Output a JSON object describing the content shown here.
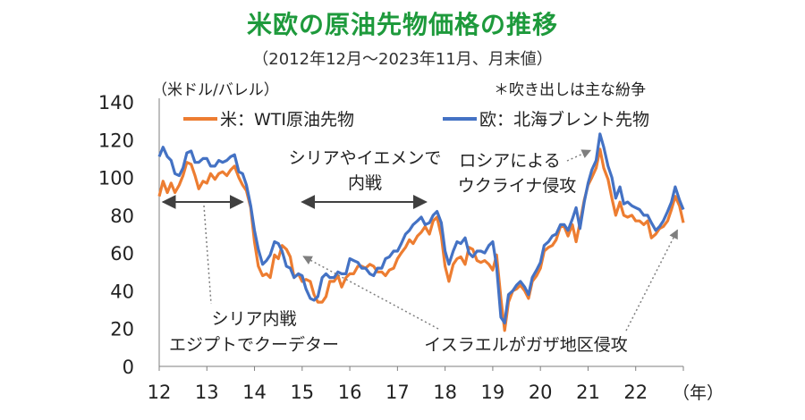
{
  "title": "米欧の原油先物価格の推移",
  "subtitle": "（2012年12月～2023年11月、月末値）",
  "chart_data": {
    "type": "line",
    "ylabel": "（米ドル/バレル）",
    "note": "＊吹き出しは主な紛争",
    "xunit": "（年）",
    "xlim": [
      2012.0,
      2023.0
    ],
    "ylim": [
      0,
      140
    ],
    "yticks": [
      0,
      20,
      40,
      60,
      80,
      100,
      120,
      140
    ],
    "xtick_labels": [
      "12",
      "13",
      "14",
      "15",
      "16",
      "17",
      "18",
      "19",
      "20",
      "21",
      "22"
    ],
    "series": [
      {
        "name": "米：WTI原油先物",
        "color": "#ed7d31",
        "points": [
          [
            2012.0,
            90
          ],
          [
            2012.08,
            98
          ],
          [
            2012.17,
            92
          ],
          [
            2012.25,
            97
          ],
          [
            2012.33,
            92
          ],
          [
            2012.42,
            96
          ],
          [
            2012.5,
            101
          ],
          [
            2012.58,
            108
          ],
          [
            2012.67,
            107
          ],
          [
            2012.75,
            101
          ],
          [
            2012.83,
            94
          ],
          [
            2012.92,
            98
          ],
          [
            2013.0,
            97
          ],
          [
            2013.08,
            102
          ],
          [
            2013.17,
            99
          ],
          [
            2013.25,
            102
          ],
          [
            2013.33,
            103
          ],
          [
            2013.42,
            101
          ],
          [
            2013.5,
            104
          ],
          [
            2013.58,
            106
          ],
          [
            2013.67,
            100
          ],
          [
            2013.75,
            96
          ],
          [
            2013.83,
            93
          ],
          [
            2013.92,
            84
          ],
          [
            2014.0,
            66
          ],
          [
            2014.08,
            53
          ],
          [
            2014.17,
            48
          ],
          [
            2014.25,
            49
          ],
          [
            2014.33,
            47
          ],
          [
            2014.42,
            59
          ],
          [
            2014.5,
            57
          ],
          [
            2014.58,
            64
          ],
          [
            2014.67,
            62
          ],
          [
            2014.75,
            58
          ],
          [
            2014.83,
            47
          ],
          [
            2014.92,
            49
          ],
          [
            2015.0,
            45
          ],
          [
            2015.08,
            46
          ],
          [
            2015.17,
            45
          ],
          [
            2015.25,
            38
          ],
          [
            2015.33,
            34
          ],
          [
            2015.42,
            34
          ],
          [
            2015.5,
            37
          ],
          [
            2015.58,
            45
          ],
          [
            2015.67,
            45
          ],
          [
            2015.75,
            48
          ],
          [
            2015.83,
            42
          ],
          [
            2015.92,
            47
          ],
          [
            2016.0,
            49
          ],
          [
            2016.08,
            49
          ],
          [
            2016.17,
            53
          ],
          [
            2016.25,
            53
          ],
          [
            2016.33,
            52
          ],
          [
            2016.42,
            54
          ],
          [
            2016.5,
            53
          ],
          [
            2016.58,
            50
          ],
          [
            2016.67,
            50
          ],
          [
            2016.75,
            48
          ],
          [
            2016.83,
            51
          ],
          [
            2016.92,
            52
          ],
          [
            2017.0,
            57
          ],
          [
            2017.08,
            60
          ],
          [
            2017.17,
            63
          ],
          [
            2017.25,
            67
          ],
          [
            2017.33,
            65
          ],
          [
            2017.42,
            69
          ],
          [
            2017.5,
            71
          ],
          [
            2017.58,
            74
          ],
          [
            2017.67,
            70
          ],
          [
            2017.75,
            77
          ],
          [
            2017.83,
            79
          ],
          [
            2017.92,
            69
          ],
          [
            2018.0,
            53
          ],
          [
            2018.08,
            45
          ],
          [
            2018.17,
            54
          ],
          [
            2018.25,
            57
          ],
          [
            2018.33,
            58
          ],
          [
            2018.42,
            54
          ],
          [
            2018.5,
            63
          ],
          [
            2018.58,
            62
          ],
          [
            2018.67,
            56
          ],
          [
            2018.75,
            55
          ],
          [
            2018.83,
            56
          ],
          [
            2018.92,
            54
          ],
          [
            2019.0,
            51
          ],
          [
            2019.08,
            59
          ],
          [
            2019.17,
            36
          ],
          [
            2019.25,
            19
          ],
          [
            2019.33,
            34
          ],
          [
            2019.42,
            40
          ],
          [
            2019.5,
            41
          ],
          [
            2019.58,
            43
          ],
          [
            2019.67,
            40
          ],
          [
            2019.75,
            36
          ],
          [
            2019.83,
            45
          ],
          [
            2019.92,
            48
          ],
          [
            2020.0,
            52
          ],
          [
            2020.08,
            61
          ],
          [
            2020.17,
            63
          ],
          [
            2020.25,
            64
          ],
          [
            2020.33,
            67
          ],
          [
            2020.42,
            74
          ],
          [
            2020.5,
            74
          ],
          [
            2020.58,
            69
          ],
          [
            2020.67,
            75
          ],
          [
            2020.75,
            66
          ],
          [
            2020.83,
            76
          ],
          [
            2020.92,
            88
          ],
          [
            2021.0,
            96
          ],
          [
            2021.08,
            100
          ],
          [
            2021.17,
            105
          ],
          [
            2021.25,
            115
          ],
          [
            2021.33,
            105
          ],
          [
            2021.42,
            99
          ],
          [
            2021.5,
            89
          ],
          [
            2021.58,
            80
          ],
          [
            2021.67,
            87
          ],
          [
            2021.75,
            80
          ],
          [
            2021.83,
            79
          ],
          [
            2021.92,
            80
          ],
          [
            2022.0,
            77
          ],
          [
            2022.08,
            77
          ],
          [
            2022.17,
            75
          ],
          [
            2022.25,
            77
          ],
          [
            2022.33,
            68
          ],
          [
            2022.42,
            70
          ],
          [
            2022.5,
            73
          ],
          [
            2022.58,
            74
          ],
          [
            2022.67,
            77
          ],
          [
            2022.75,
            83
          ],
          [
            2022.83,
            90
          ],
          [
            2022.92,
            85
          ],
          [
            2023.0,
            76
          ]
        ]
      },
      {
        "name": "欧：北海ブレント先物",
        "color": "#4472c4",
        "points": [
          [
            2012.0,
            111
          ],
          [
            2012.08,
            116
          ],
          [
            2012.17,
            111
          ],
          [
            2012.25,
            109
          ],
          [
            2012.33,
            102
          ],
          [
            2012.42,
            101
          ],
          [
            2012.5,
            105
          ],
          [
            2012.58,
            113
          ],
          [
            2012.67,
            114
          ],
          [
            2012.75,
            108
          ],
          [
            2012.83,
            108
          ],
          [
            2012.92,
            110
          ],
          [
            2013.0,
            110
          ],
          [
            2013.08,
            106
          ],
          [
            2013.17,
            106
          ],
          [
            2013.25,
            109
          ],
          [
            2013.33,
            108
          ],
          [
            2013.42,
            109
          ],
          [
            2013.5,
            111
          ],
          [
            2013.58,
            112
          ],
          [
            2013.67,
            103
          ],
          [
            2013.75,
            102
          ],
          [
            2013.83,
            96
          ],
          [
            2013.92,
            85
          ],
          [
            2014.0,
            72
          ],
          [
            2014.08,
            62
          ],
          [
            2014.17,
            54
          ],
          [
            2014.25,
            56
          ],
          [
            2014.33,
            59
          ],
          [
            2014.42,
            66
          ],
          [
            2014.5,
            65
          ],
          [
            2014.58,
            61
          ],
          [
            2014.67,
            53
          ],
          [
            2014.75,
            52
          ],
          [
            2014.83,
            47
          ],
          [
            2014.92,
            49
          ],
          [
            2015.0,
            48
          ],
          [
            2015.08,
            41
          ],
          [
            2015.17,
            36
          ],
          [
            2015.25,
            35
          ],
          [
            2015.33,
            37
          ],
          [
            2015.42,
            47
          ],
          [
            2015.5,
            49
          ],
          [
            2015.58,
            47
          ],
          [
            2015.67,
            47
          ],
          [
            2015.75,
            50
          ],
          [
            2015.83,
            49
          ],
          [
            2015.92,
            49
          ],
          [
            2016.0,
            57
          ],
          [
            2016.08,
            56
          ],
          [
            2016.17,
            55
          ],
          [
            2016.25,
            52
          ],
          [
            2016.33,
            52
          ],
          [
            2016.42,
            49
          ],
          [
            2016.5,
            48
          ],
          [
            2016.58,
            52
          ],
          [
            2016.67,
            52
          ],
          [
            2016.75,
            57
          ],
          [
            2016.83,
            58
          ],
          [
            2016.92,
            61
          ],
          [
            2017.0,
            61
          ],
          [
            2017.08,
            65
          ],
          [
            2017.17,
            70
          ],
          [
            2017.25,
            72
          ],
          [
            2017.33,
            75
          ],
          [
            2017.42,
            77
          ],
          [
            2017.5,
            79
          ],
          [
            2017.58,
            75
          ],
          [
            2017.67,
            76
          ],
          [
            2017.75,
            80
          ],
          [
            2017.83,
            82
          ],
          [
            2017.92,
            76
          ],
          [
            2018.0,
            61
          ],
          [
            2018.08,
            54
          ],
          [
            2018.17,
            61
          ],
          [
            2018.25,
            66
          ],
          [
            2018.33,
            65
          ],
          [
            2018.42,
            68
          ],
          [
            2018.5,
            60
          ],
          [
            2018.58,
            58
          ],
          [
            2018.67,
            61
          ],
          [
            2018.75,
            61
          ],
          [
            2018.83,
            60
          ],
          [
            2018.92,
            64
          ],
          [
            2019.0,
            66
          ],
          [
            2019.08,
            53
          ],
          [
            2019.17,
            26
          ],
          [
            2019.25,
            23
          ],
          [
            2019.33,
            38
          ],
          [
            2019.42,
            40
          ],
          [
            2019.5,
            43
          ],
          [
            2019.58,
            45
          ],
          [
            2019.67,
            42
          ],
          [
            2019.75,
            38
          ],
          [
            2019.83,
            47
          ],
          [
            2019.92,
            51
          ],
          [
            2020.0,
            55
          ],
          [
            2020.08,
            64
          ],
          [
            2020.17,
            66
          ],
          [
            2020.25,
            69
          ],
          [
            2020.33,
            70
          ],
          [
            2020.42,
            75
          ],
          [
            2020.5,
            75
          ],
          [
            2020.58,
            72
          ],
          [
            2020.67,
            78
          ],
          [
            2020.75,
            84
          ],
          [
            2020.83,
            73
          ],
          [
            2020.92,
            87
          ],
          [
            2021.0,
            97
          ],
          [
            2021.08,
            104
          ],
          [
            2021.17,
            109
          ],
          [
            2021.25,
            123
          ],
          [
            2021.33,
            116
          ],
          [
            2021.42,
            106
          ],
          [
            2021.5,
            100
          ],
          [
            2021.58,
            89
          ],
          [
            2021.67,
            95
          ],
          [
            2021.75,
            86
          ],
          [
            2021.83,
            87
          ],
          [
            2021.92,
            85
          ],
          [
            2022.0,
            84
          ],
          [
            2022.08,
            83
          ],
          [
            2022.17,
            80
          ],
          [
            2022.25,
            80
          ],
          [
            2022.33,
            76
          ],
          [
            2022.42,
            72
          ],
          [
            2022.5,
            74
          ],
          [
            2022.58,
            77
          ],
          [
            2022.67,
            82
          ],
          [
            2022.75,
            87
          ],
          [
            2022.83,
            95
          ],
          [
            2022.92,
            88
          ],
          [
            2023.0,
            83
          ]
        ]
      }
    ],
    "annotations": [
      {
        "text": [
          "シリア内戦",
          "エジプトでクーデター"
        ],
        "span": [
          2012.08,
          2013.75
        ],
        "style": "double-arrow",
        "label_pos": "below"
      },
      {
        "text": [
          "シリアやイエメンで",
          "内戦"
        ],
        "span": [
          2015.0,
          2017.6
        ],
        "style": "double-arrow",
        "label_pos": "above"
      },
      {
        "text": [
          "ロシアによる",
          "ウクライナ侵攻"
        ],
        "target": [
          2021.2,
          120
        ],
        "style": "dotted-arrow"
      },
      {
        "text": [
          "イスラエルがガザ地区侵攻"
        ],
        "targets": [
          [
            2014.8,
            62
          ],
          [
            2022.95,
            75
          ]
        ],
        "style": "dotted-arrow"
      }
    ]
  }
}
